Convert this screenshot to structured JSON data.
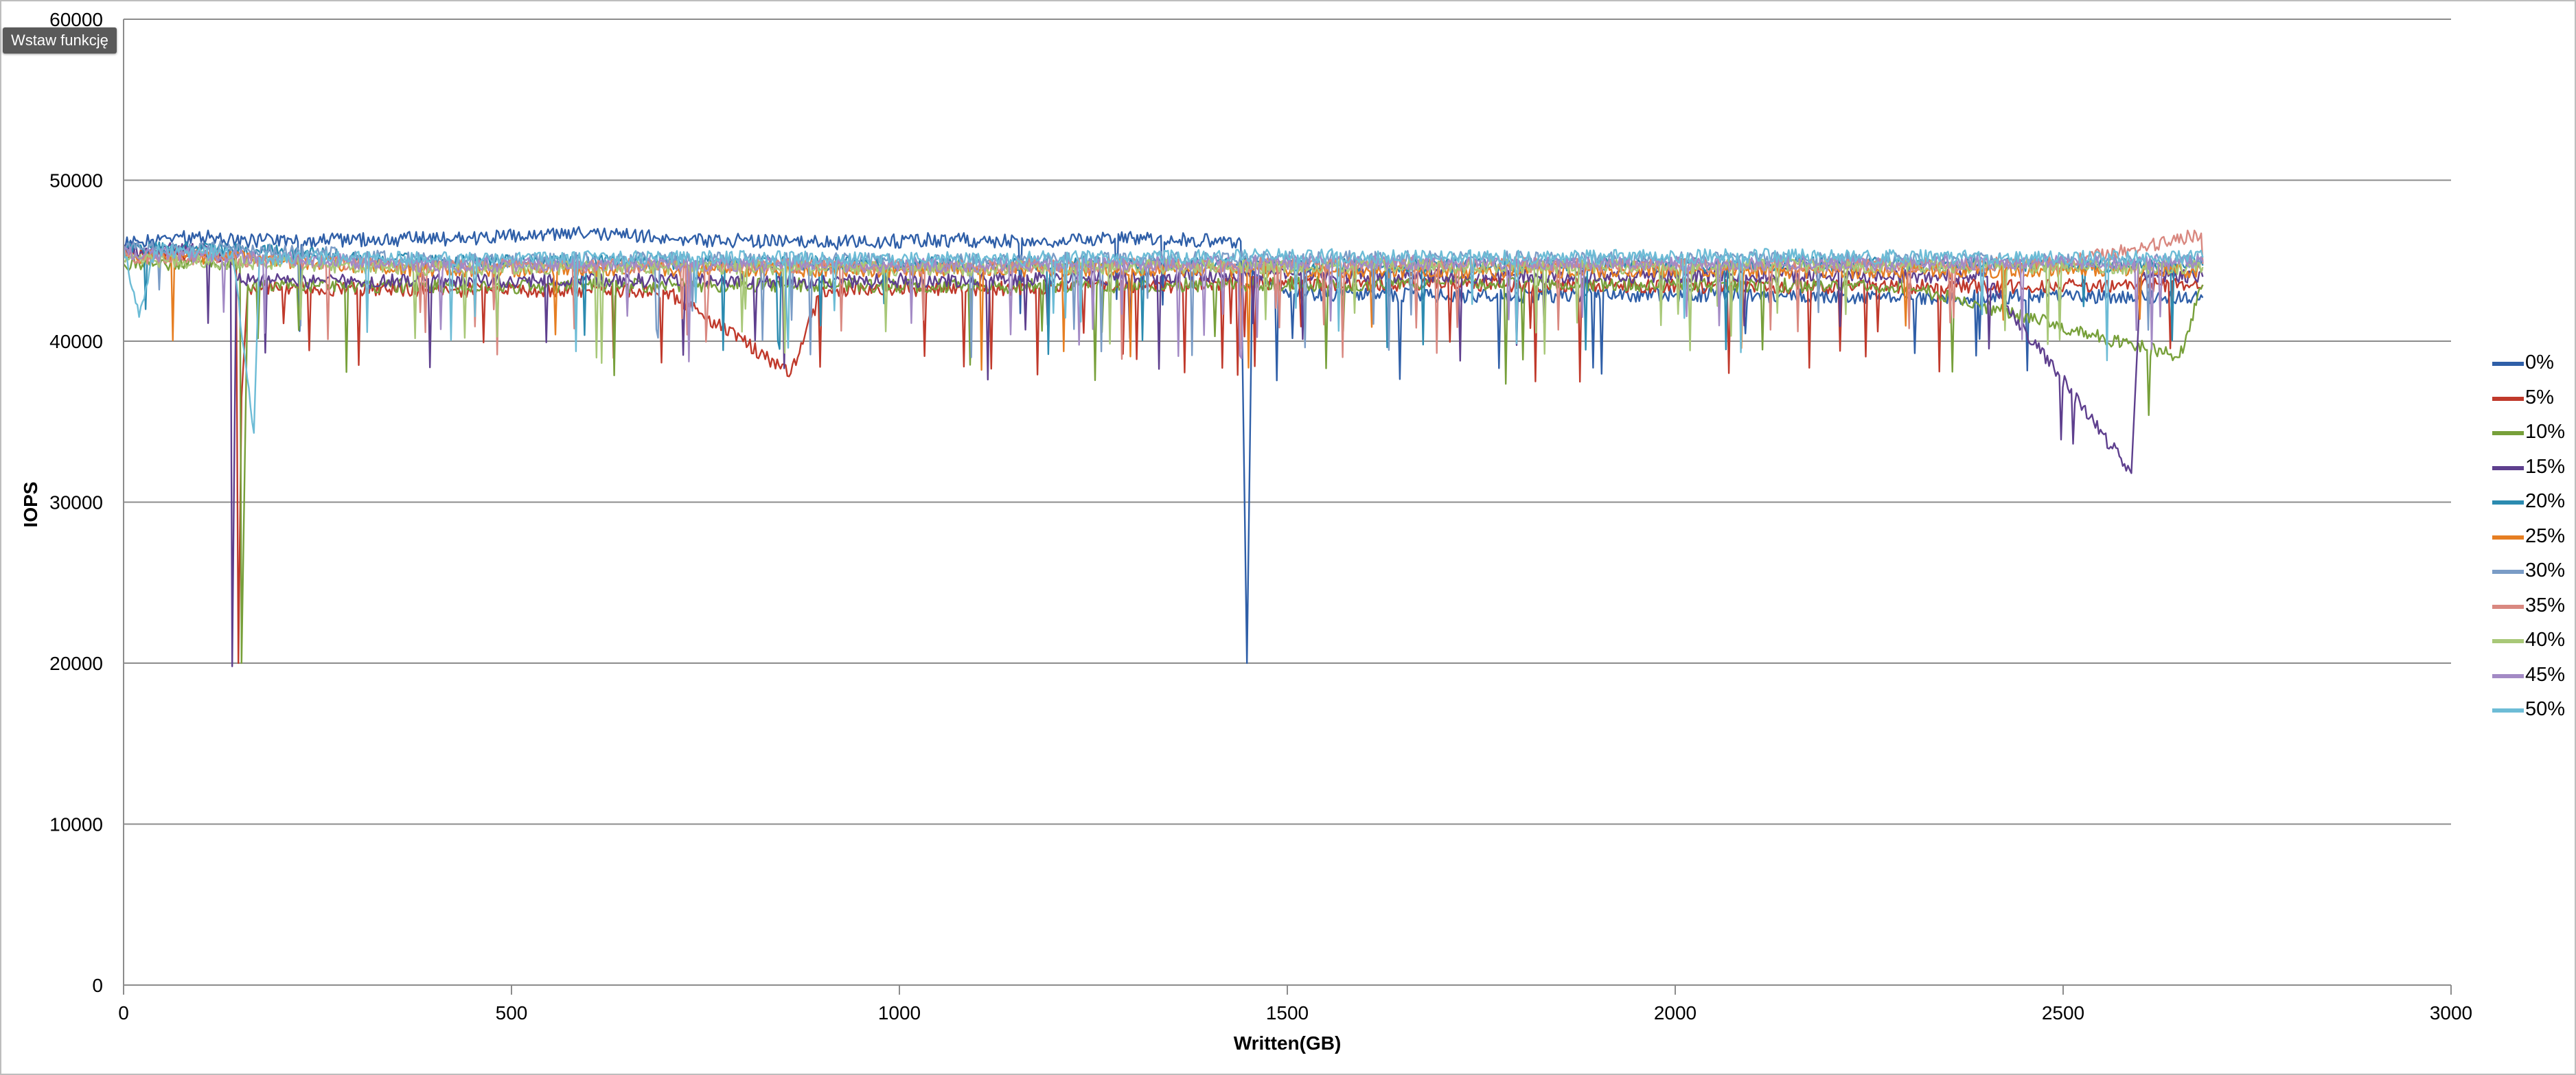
{
  "tooltip": {
    "label": "Wstaw funkcję"
  },
  "chart_data": {
    "type": "line",
    "title": "",
    "xlabel": "Written(GB)",
    "ylabel": "IOPS",
    "xlim": [
      0,
      3000
    ],
    "ylim": [
      0,
      60000
    ],
    "xticks": [
      0,
      500,
      1000,
      1500,
      2000,
      2500,
      3000
    ],
    "yticks": [
      0,
      10000,
      20000,
      30000,
      40000,
      50000,
      60000
    ],
    "grid": true,
    "legend_position": "right",
    "series": [
      {
        "name": "0%",
        "color": "#2f5fa8",
        "points": [
          [
            0,
            46000
          ],
          [
            60,
            46400
          ],
          [
            120,
            46500
          ],
          [
            145,
            46200
          ],
          [
            300,
            46300
          ],
          [
            450,
            46400
          ],
          [
            600,
            46700
          ],
          [
            750,
            46300
          ],
          [
            900,
            46100
          ],
          [
            1050,
            46300
          ],
          [
            1200,
            46200
          ],
          [
            1300,
            46400
          ],
          [
            1440,
            46200
          ],
          [
            1448,
            20000
          ],
          [
            1455,
            44500
          ],
          [
            1500,
            43000
          ],
          [
            1700,
            42800
          ],
          [
            2000,
            42900
          ],
          [
            2300,
            42700
          ],
          [
            2500,
            42800
          ],
          [
            2680,
            42700
          ]
        ]
      },
      {
        "name": "5%",
        "color": "#c0392b",
        "points": [
          [
            0,
            45500
          ],
          [
            100,
            45400
          ],
          [
            145,
            45200
          ],
          [
            148,
            20000
          ],
          [
            152,
            36500
          ],
          [
            160,
            43300
          ],
          [
            400,
            43200
          ],
          [
            700,
            43100
          ],
          [
            860,
            38000
          ],
          [
            900,
            43200
          ],
          [
            1200,
            43300
          ],
          [
            1500,
            43600
          ],
          [
            1800,
            43500
          ],
          [
            2100,
            43400
          ],
          [
            2400,
            43400
          ],
          [
            2680,
            43500
          ]
        ]
      },
      {
        "name": "10%",
        "color": "#77a03a",
        "points": [
          [
            0,
            44800
          ],
          [
            100,
            44900
          ],
          [
            150,
            44600
          ],
          [
            152,
            20000
          ],
          [
            160,
            43500
          ],
          [
            500,
            43400
          ],
          [
            800,
            43500
          ],
          [
            1100,
            43400
          ],
          [
            1400,
            43500
          ],
          [
            1700,
            43600
          ],
          [
            2000,
            43500
          ],
          [
            2300,
            43400
          ],
          [
            2650,
            39000
          ],
          [
            2680,
            43500
          ]
        ]
      },
      {
        "name": "15%",
        "color": "#5e3f8e",
        "points": [
          [
            0,
            45600
          ],
          [
            100,
            45700
          ],
          [
            138,
            45200
          ],
          [
            140,
            19800
          ],
          [
            145,
            43800
          ],
          [
            300,
            43700
          ],
          [
            600,
            43800
          ],
          [
            900,
            43700
          ],
          [
            1200,
            43900
          ],
          [
            1500,
            44100
          ],
          [
            1800,
            44000
          ],
          [
            2100,
            44100
          ],
          [
            2400,
            44000
          ],
          [
            2588,
            31800
          ],
          [
            2600,
            44000
          ],
          [
            2680,
            44000
          ]
        ]
      },
      {
        "name": "20%",
        "color": "#2b8bb0",
        "points": [
          [
            0,
            45800
          ],
          [
            140,
            45700
          ],
          [
            400,
            44900
          ],
          [
            700,
            44900
          ],
          [
            1000,
            44800
          ],
          [
            1300,
            44900
          ],
          [
            1600,
            44700
          ],
          [
            1900,
            44700
          ],
          [
            2200,
            44800
          ],
          [
            2500,
            44700
          ],
          [
            2680,
            44700
          ]
        ]
      },
      {
        "name": "25%",
        "color": "#e67e22",
        "points": [
          [
            0,
            45300
          ],
          [
            140,
            45200
          ],
          [
            400,
            44400
          ],
          [
            700,
            44500
          ],
          [
            1000,
            44400
          ],
          [
            1300,
            44500
          ],
          [
            1600,
            44300
          ],
          [
            1900,
            44400
          ],
          [
            2200,
            44300
          ],
          [
            2500,
            44400
          ],
          [
            2680,
            44400
          ]
        ]
      },
      {
        "name": "30%",
        "color": "#7a9cc6",
        "points": [
          [
            0,
            45900
          ],
          [
            140,
            45800
          ],
          [
            400,
            45000
          ],
          [
            700,
            45100
          ],
          [
            1000,
            45000
          ],
          [
            1300,
            45100
          ],
          [
            1600,
            45200
          ],
          [
            1900,
            45100
          ],
          [
            2200,
            45100
          ],
          [
            2500,
            45000
          ],
          [
            2680,
            45000
          ]
        ]
      },
      {
        "name": "35%",
        "color": "#d98880",
        "points": [
          [
            0,
            45200
          ],
          [
            140,
            45100
          ],
          [
            400,
            44600
          ],
          [
            700,
            44700
          ],
          [
            1000,
            44600
          ],
          [
            1300,
            44700
          ],
          [
            1600,
            44800
          ],
          [
            1900,
            44700
          ],
          [
            2200,
            44700
          ],
          [
            2500,
            44800
          ],
          [
            2678,
            46700
          ],
          [
            2680,
            44800
          ]
        ]
      },
      {
        "name": "40%",
        "color": "#a8c878",
        "points": [
          [
            0,
            45000
          ],
          [
            140,
            44900
          ],
          [
            400,
            44500
          ],
          [
            700,
            44600
          ],
          [
            1000,
            44500
          ],
          [
            1300,
            44600
          ],
          [
            1600,
            44700
          ],
          [
            1900,
            44600
          ],
          [
            2200,
            44700
          ],
          [
            2500,
            44600
          ],
          [
            2680,
            44600
          ]
        ]
      },
      {
        "name": "45%",
        "color": "#a38ac5",
        "points": [
          [
            0,
            45400
          ],
          [
            140,
            45300
          ],
          [
            400,
            44700
          ],
          [
            700,
            44800
          ],
          [
            1000,
            44700
          ],
          [
            1300,
            44800
          ],
          [
            1600,
            44900
          ],
          [
            1900,
            44800
          ],
          [
            2200,
            44800
          ],
          [
            2500,
            44900
          ],
          [
            2680,
            44900
          ]
        ]
      },
      {
        "name": "50%",
        "color": "#6dbcd6",
        "points": [
          [
            0,
            45700
          ],
          [
            20,
            41500
          ],
          [
            40,
            45600
          ],
          [
            140,
            45500
          ],
          [
            168,
            34300
          ],
          [
            175,
            45200
          ],
          [
            400,
            45100
          ],
          [
            700,
            45200
          ],
          [
            1000,
            45100
          ],
          [
            1300,
            45200
          ],
          [
            1500,
            45300
          ],
          [
            1800,
            45200
          ],
          [
            2100,
            45300
          ],
          [
            2400,
            45200
          ],
          [
            2680,
            45200
          ]
        ]
      }
    ]
  }
}
